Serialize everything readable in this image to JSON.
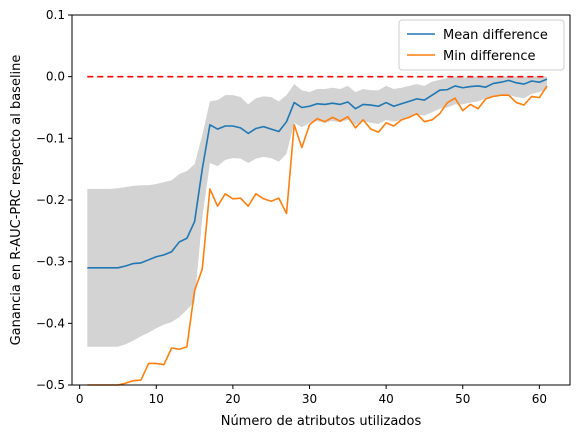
{
  "chart_data": {
    "type": "line",
    "title": "",
    "xlabel": "Número de atributos utilizados",
    "ylabel": "Ganancia en R-AUC-PRC respecto al baseline",
    "xlim": [
      -1,
      64
    ],
    "ylim": [
      -0.5,
      0.1
    ],
    "xticks": [
      0,
      10,
      20,
      30,
      40,
      50,
      60
    ],
    "yticks": [
      -0.5,
      -0.4,
      -0.3,
      -0.2,
      -0.1,
      0.0,
      0.1
    ],
    "xtick_labels": [
      "0",
      "10",
      "20",
      "30",
      "40",
      "50",
      "60"
    ],
    "ytick_labels": [
      "−0.5",
      "−0.4",
      "−0.3",
      "−0.2",
      "−0.1",
      "0.0",
      "0.1"
    ],
    "grid": false,
    "legend_position": "top-right",
    "x": [
      1,
      2,
      3,
      4,
      5,
      6,
      7,
      8,
      9,
      10,
      11,
      12,
      13,
      14,
      15,
      16,
      17,
      18,
      19,
      20,
      21,
      22,
      23,
      24,
      25,
      26,
      27,
      28,
      29,
      30,
      31,
      32,
      33,
      34,
      35,
      36,
      37,
      38,
      39,
      40,
      41,
      42,
      43,
      44,
      45,
      46,
      47,
      48,
      49,
      50,
      51,
      52,
      53,
      54,
      55,
      56,
      57,
      58,
      59,
      60,
      61
    ],
    "band": {
      "color": "#d3d3d3",
      "upper": [
        -0.182,
        -0.182,
        -0.182,
        -0.182,
        -0.181,
        -0.179,
        -0.177,
        -0.176,
        -0.176,
        -0.174,
        -0.171,
        -0.168,
        -0.158,
        -0.153,
        -0.142,
        -0.095,
        -0.04,
        -0.038,
        -0.03,
        -0.03,
        -0.033,
        -0.045,
        -0.035,
        -0.032,
        -0.033,
        -0.04,
        -0.03,
        -0.012,
        -0.022,
        -0.025,
        -0.02,
        -0.02,
        -0.018,
        -0.02,
        -0.015,
        -0.025,
        -0.02,
        -0.022,
        -0.022,
        -0.015,
        -0.02,
        -0.018,
        -0.015,
        -0.012,
        -0.015,
        -0.008,
        -0.005,
        -0.002,
        0.0,
        -0.002,
        0.0,
        0.0,
        0.0,
        0.0,
        0.0,
        0.0,
        0.0,
        0.0,
        0.0,
        0.0,
        0.0
      ],
      "lower": [
        -0.438,
        -0.438,
        -0.438,
        -0.438,
        -0.438,
        -0.434,
        -0.428,
        -0.421,
        -0.415,
        -0.408,
        -0.402,
        -0.398,
        -0.39,
        -0.378,
        -0.365,
        -0.23,
        -0.14,
        -0.145,
        -0.135,
        -0.132,
        -0.133,
        -0.14,
        -0.133,
        -0.13,
        -0.132,
        -0.138,
        -0.125,
        -0.075,
        -0.082,
        -0.075,
        -0.072,
        -0.075,
        -0.072,
        -0.074,
        -0.07,
        -0.078,
        -0.072,
        -0.075,
        -0.077,
        -0.07,
        -0.073,
        -0.07,
        -0.065,
        -0.062,
        -0.063,
        -0.058,
        -0.052,
        -0.05,
        -0.045,
        -0.045,
        -0.042,
        -0.04,
        -0.035,
        -0.033,
        -0.03,
        -0.03,
        -0.033,
        -0.035,
        -0.028,
        -0.025,
        -0.02
      ]
    },
    "series": [
      {
        "name": "Mean difference",
        "color": "#1f77b4",
        "values": [
          -0.31,
          -0.31,
          -0.31,
          -0.31,
          -0.31,
          -0.307,
          -0.303,
          -0.302,
          -0.297,
          -0.292,
          -0.289,
          -0.284,
          -0.268,
          -0.262,
          -0.235,
          -0.15,
          -0.078,
          -0.085,
          -0.08,
          -0.08,
          -0.083,
          -0.092,
          -0.084,
          -0.081,
          -0.085,
          -0.089,
          -0.073,
          -0.042,
          -0.05,
          -0.048,
          -0.044,
          -0.045,
          -0.043,
          -0.045,
          -0.041,
          -0.052,
          -0.045,
          -0.046,
          -0.048,
          -0.042,
          -0.048,
          -0.044,
          -0.04,
          -0.036,
          -0.038,
          -0.03,
          -0.022,
          -0.021,
          -0.015,
          -0.018,
          -0.016,
          -0.015,
          -0.017,
          -0.011,
          -0.009,
          -0.006,
          -0.01,
          -0.012,
          -0.007,
          -0.009,
          -0.004
        ]
      },
      {
        "name": "Min difference",
        "color": "#ff7f0e",
        "values": [
          -0.5,
          -0.5,
          -0.5,
          -0.5,
          -0.5,
          -0.497,
          -0.493,
          -0.492,
          -0.465,
          -0.465,
          -0.467,
          -0.44,
          -0.442,
          -0.438,
          -0.347,
          -0.312,
          -0.182,
          -0.21,
          -0.19,
          -0.198,
          -0.197,
          -0.21,
          -0.19,
          -0.198,
          -0.202,
          -0.197,
          -0.222,
          -0.078,
          -0.115,
          -0.078,
          -0.068,
          -0.073,
          -0.066,
          -0.072,
          -0.065,
          -0.083,
          -0.07,
          -0.085,
          -0.09,
          -0.075,
          -0.08,
          -0.07,
          -0.066,
          -0.06,
          -0.073,
          -0.07,
          -0.06,
          -0.042,
          -0.035,
          -0.055,
          -0.045,
          -0.052,
          -0.036,
          -0.032,
          -0.03,
          -0.03,
          -0.042,
          -0.046,
          -0.032,
          -0.034,
          -0.015
        ]
      },
      {
        "name": "",
        "color": "#ff0000",
        "style": "dashed",
        "values_const": 0.0,
        "x_range": [
          1,
          61
        ]
      }
    ]
  }
}
